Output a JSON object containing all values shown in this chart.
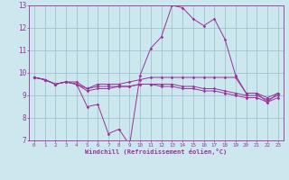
{
  "xlabel": "Windchill (Refroidissement éolien,°C)",
  "background_color": "#cce8ee",
  "line_color": "#993399",
  "grid_color": "#99bbcc",
  "xlim": [
    -0.5,
    23.5
  ],
  "ylim": [
    7,
    13
  ],
  "yticks": [
    7,
    8,
    9,
    10,
    11,
    12,
    13
  ],
  "xticks": [
    0,
    1,
    2,
    3,
    4,
    5,
    6,
    7,
    8,
    9,
    10,
    11,
    12,
    13,
    14,
    15,
    16,
    17,
    18,
    19,
    20,
    21,
    22,
    23
  ],
  "series": [
    {
      "x": [
        0,
        1,
        2,
        3,
        4,
        5,
        6,
        7,
        8,
        9,
        10,
        11,
        12,
        13,
        14,
        15,
        16,
        17,
        18,
        19,
        20,
        21,
        22,
        23
      ],
      "y": [
        9.8,
        9.7,
        9.5,
        9.6,
        9.5,
        8.5,
        8.6,
        7.3,
        7.5,
        6.8,
        9.9,
        11.1,
        11.6,
        13.0,
        12.9,
        12.4,
        12.1,
        12.4,
        11.5,
        9.9,
        9.1,
        9.1,
        8.7,
        9.1
      ]
    },
    {
      "x": [
        0,
        1,
        2,
        3,
        4,
        5,
        6,
        7,
        8,
        9,
        10,
        11,
        12,
        13,
        14,
        15,
        16,
        17,
        18,
        19,
        20,
        21,
        22,
        23
      ],
      "y": [
        9.8,
        9.7,
        9.5,
        9.6,
        9.6,
        9.3,
        9.5,
        9.5,
        9.5,
        9.6,
        9.7,
        9.8,
        9.8,
        9.8,
        9.8,
        9.8,
        9.8,
        9.8,
        9.8,
        9.8,
        9.1,
        9.1,
        8.9,
        9.1
      ]
    },
    {
      "x": [
        0,
        1,
        2,
        3,
        4,
        5,
        6,
        7,
        8,
        9,
        10,
        11,
        12,
        13,
        14,
        15,
        16,
        17,
        18,
        19,
        20,
        21,
        22,
        23
      ],
      "y": [
        9.8,
        9.7,
        9.5,
        9.6,
        9.5,
        9.3,
        9.4,
        9.4,
        9.4,
        9.4,
        9.5,
        9.5,
        9.5,
        9.5,
        9.4,
        9.4,
        9.3,
        9.3,
        9.2,
        9.1,
        9.0,
        9.0,
        8.8,
        9.0
      ]
    },
    {
      "x": [
        0,
        1,
        2,
        3,
        4,
        5,
        6,
        7,
        8,
        9,
        10,
        11,
        12,
        13,
        14,
        15,
        16,
        17,
        18,
        19,
        20,
        21,
        22,
        23
      ],
      "y": [
        9.8,
        9.7,
        9.5,
        9.6,
        9.5,
        9.2,
        9.3,
        9.3,
        9.4,
        9.4,
        9.5,
        9.5,
        9.4,
        9.4,
        9.3,
        9.3,
        9.2,
        9.2,
        9.1,
        9.0,
        8.9,
        8.9,
        8.7,
        8.9
      ]
    }
  ]
}
